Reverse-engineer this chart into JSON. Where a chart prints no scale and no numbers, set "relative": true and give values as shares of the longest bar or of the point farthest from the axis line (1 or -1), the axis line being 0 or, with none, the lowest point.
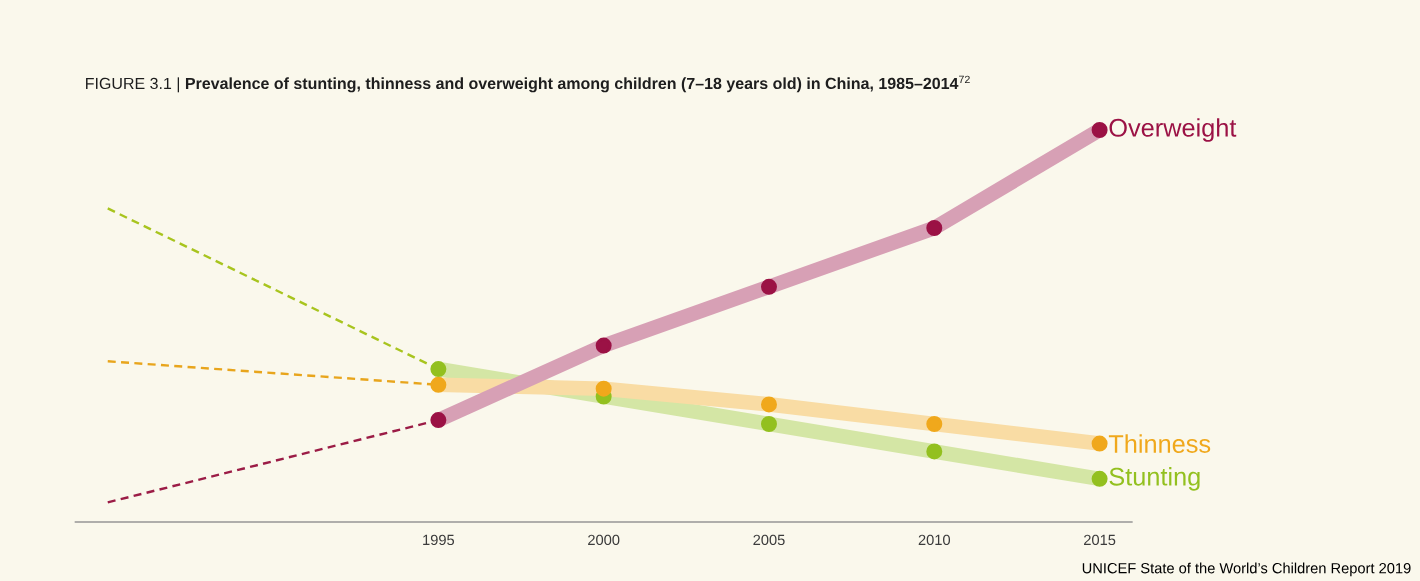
{
  "chart_data": {
    "type": "line",
    "title": "FIGURE 3.1 | **Prevalence of stunting, thinness and overweight among children (7–18 years old) in China, 1985–2014**$^{72}$",
    "relative": true,
    "xlim": [
      1984,
      2016
    ],
    "xticks": [
      1995,
      2000,
      2005,
      2010,
      2015
    ],
    "grid": false,
    "annotations": [
      "UNICEF State of the World’s Children Report 2019"
    ],
    "series": [
      {
        "color": "#a8c41e",
        "x": [
          1985,
          1995
        ],
        "values": [
          0.8,
          0.39
        ],
        "line_style": "dashed"
      },
      {
        "color": "#e8a51c",
        "x": [
          1985,
          1995
        ],
        "values": [
          0.41,
          0.35
        ],
        "line_style": "dashed"
      },
      {
        "color": "#9b1c46",
        "x": [
          1985,
          1995
        ],
        "values": [
          0.05,
          0.26
        ],
        "line_style": "dashed"
      },
      {
        "name": "Stunting",
        "color": "#93c01f",
        "x": [
          1995,
          2000,
          2005,
          2010,
          2015
        ],
        "values": [
          0.39,
          0.32,
          0.25,
          0.18,
          0.11
        ],
        "line_style": "solid",
        "marker": "circle"
      },
      {
        "name": "Thinness",
        "color": "#f0a81c",
        "x": [
          1995,
          2000,
          2005,
          2010,
          2015
        ],
        "values": [
          0.35,
          0.34,
          0.3,
          0.25,
          0.2
        ],
        "line_style": "solid",
        "marker": "circle"
      },
      {
        "name": "Overweight",
        "color": "#9b1245",
        "x": [
          1995,
          2000,
          2005,
          2010,
          2015
        ],
        "values": [
          0.26,
          0.45,
          0.6,
          0.75,
          1.0
        ],
        "line_style": "solid",
        "marker": "circle"
      }
    ]
  }
}
